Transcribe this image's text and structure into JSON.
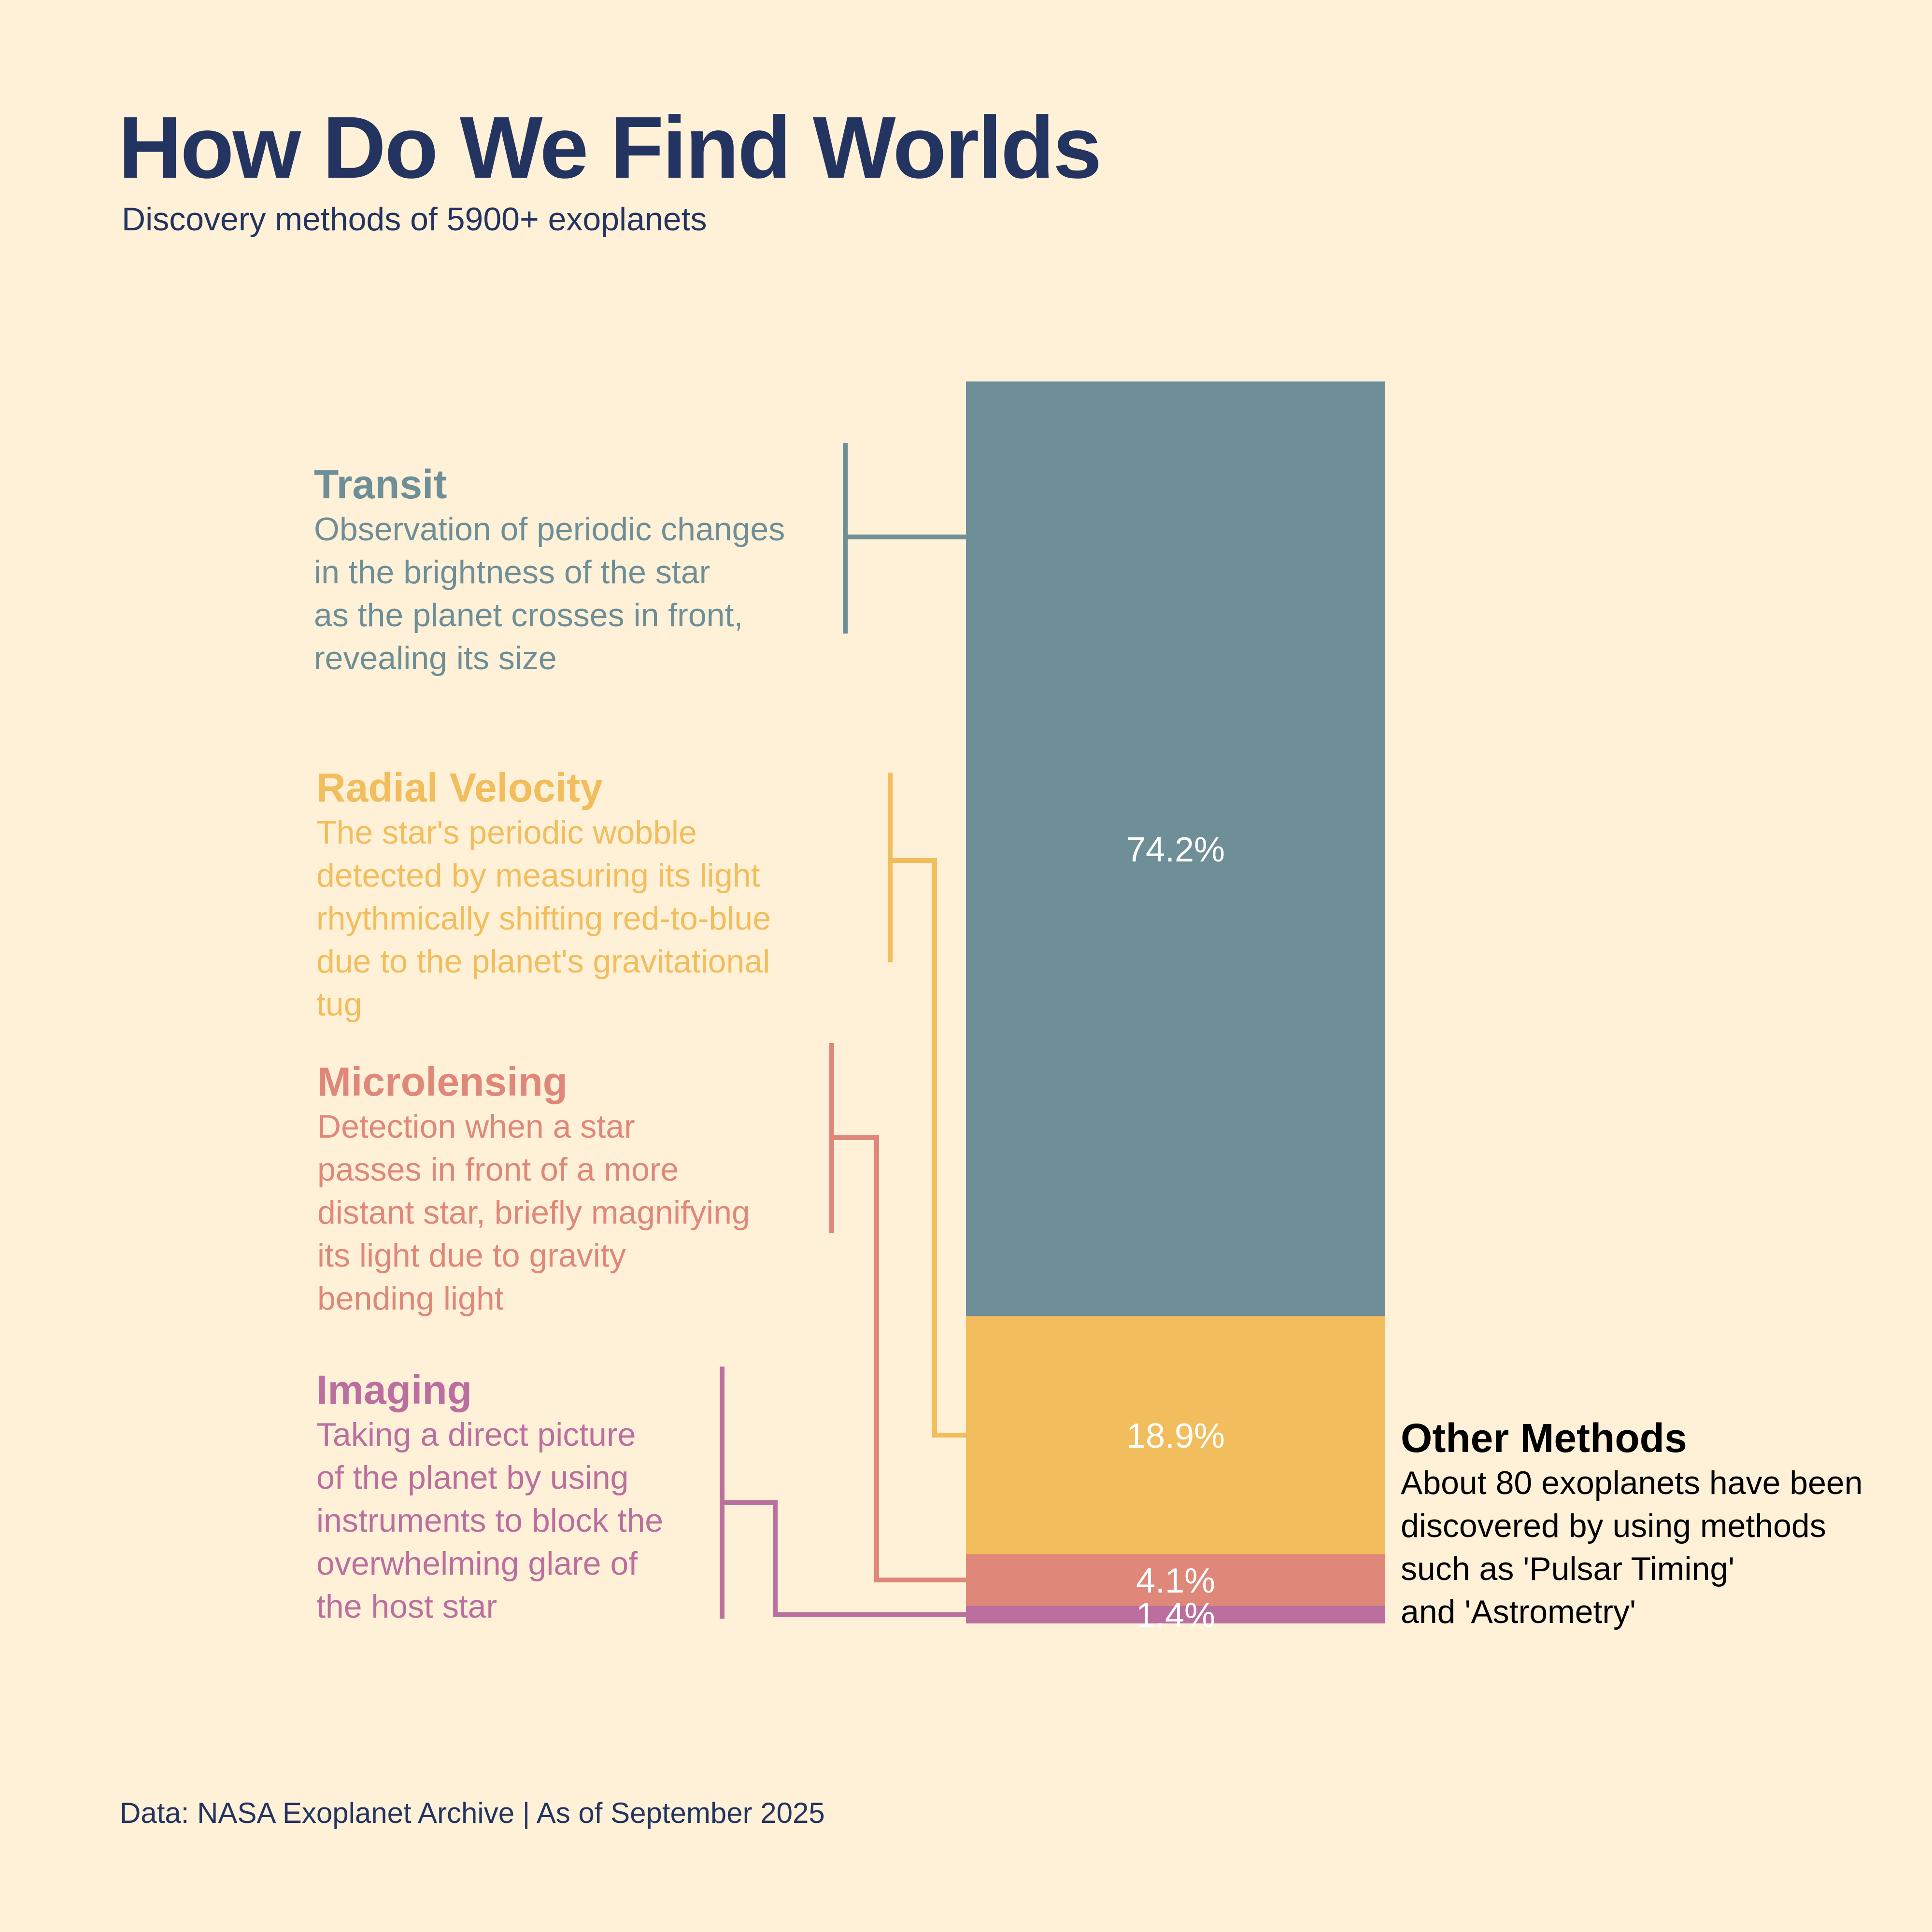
{
  "header": {
    "title": "How Do We Find Worlds",
    "subtitle": "Discovery methods of 5900+ exoplanets"
  },
  "footer": {
    "source": "Data: NASA Exoplanet Archive | As of September 2025"
  },
  "chart_data": {
    "type": "bar",
    "stacked": true,
    "categories": [
      "Transit",
      "Radial Velocity",
      "Microlensing",
      "Imaging"
    ],
    "values": [
      74.2,
      18.9,
      4.1,
      1.4
    ],
    "value_labels": [
      "74.2%",
      "18.9%",
      "4.1%",
      "1.4%"
    ],
    "colors": [
      "#6e8f98",
      "#f2bd5c",
      "#df8879",
      "#bb6f9f"
    ],
    "grid": false,
    "legend": "none"
  },
  "methods": [
    {
      "name": "Transit",
      "description": "Observation of periodic changes\nin the brightness of the star\nas the planet crosses in front,\nrevealing its size",
      "color": "#6e8f98"
    },
    {
      "name": "Radial Velocity",
      "description": "The star's periodic wobble\ndetected by measuring its light\nrhythmically shifting red-to-blue\ndue to the planet's gravitational\ntug",
      "color": "#f2bd5c"
    },
    {
      "name": "Microlensing",
      "description": "Detection when a star\npasses in front of a more\ndistant star, briefly magnifying\nits light due to gravity\nbending light",
      "color": "#df8879"
    },
    {
      "name": "Imaging",
      "description": "Taking a direct picture\nof the planet by using\ninstruments to block the\noverwhelming glare of\nthe host star",
      "color": "#bb6f9f"
    }
  ],
  "other": {
    "name": "Other Methods",
    "description": "About 80 exoplanets have been\ndiscovered by using methods\nsuch as 'Pulsar Timing'\nand 'Astrometry'"
  }
}
